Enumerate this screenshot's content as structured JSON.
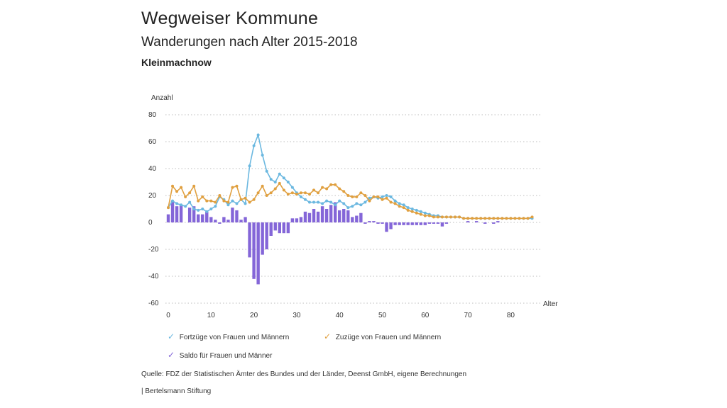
{
  "header": {
    "title": "Wegweiser Kommune",
    "subtitle": "Wanderungen nach Alter 2015-2018",
    "region": "Kleinmachnow"
  },
  "chart_data": {
    "type": "line+bar",
    "ylabel": "Anzahl",
    "xlabel": "Alter",
    "ylim": [
      -60,
      80
    ],
    "xlim": [
      0,
      86
    ],
    "yticks": [
      "80",
      "60",
      "40",
      "20",
      "0",
      "-20",
      "-40",
      "-60"
    ],
    "xticks": [
      "0",
      "10",
      "20",
      "30",
      "40",
      "50",
      "60",
      "70",
      "80"
    ],
    "x": [
      0,
      1,
      2,
      3,
      4,
      5,
      6,
      7,
      8,
      9,
      10,
      11,
      12,
      13,
      14,
      15,
      16,
      17,
      18,
      19,
      20,
      21,
      22,
      23,
      24,
      25,
      26,
      27,
      28,
      29,
      30,
      31,
      32,
      33,
      34,
      35,
      36,
      37,
      38,
      39,
      40,
      41,
      42,
      43,
      44,
      45,
      46,
      47,
      48,
      49,
      50,
      51,
      52,
      53,
      54,
      55,
      56,
      57,
      58,
      59,
      60,
      61,
      62,
      63,
      64,
      65,
      66,
      67,
      68,
      69,
      70,
      71,
      72,
      73,
      74,
      75,
      76,
      77,
      78,
      79,
      80,
      81,
      82,
      83,
      84,
      85
    ],
    "series": [
      {
        "name": "Fortzüge von Frauen und Männern",
        "color": "#6bb8e0",
        "type": "line",
        "values": [
          11,
          16,
          14,
          13,
          12,
          15,
          10,
          9,
          10,
          8,
          10,
          12,
          19,
          17,
          13,
          16,
          14,
          17,
          14,
          42,
          57,
          65,
          50,
          38,
          32,
          30,
          36,
          33,
          30,
          26,
          22,
          19,
          17,
          15,
          15,
          15,
          14,
          16,
          15,
          13,
          16,
          14,
          11,
          12,
          14,
          13,
          15,
          18,
          19,
          18,
          19,
          20,
          19,
          16,
          14,
          13,
          11,
          10,
          9,
          8,
          7,
          6,
          5,
          5,
          4,
          4,
          4,
          4,
          4,
          3,
          3,
          3,
          3,
          3,
          3,
          3,
          3,
          3,
          3,
          3,
          3,
          3,
          3,
          3,
          3,
          3
        ]
      },
      {
        "name": "Zuzüge von Frauen und Männern",
        "color": "#e0a040",
        "type": "line",
        "values": [
          11,
          27,
          23,
          26,
          19,
          22,
          27,
          16,
          19,
          16,
          16,
          15,
          20,
          16,
          15,
          26,
          27,
          17,
          18,
          15,
          17,
          22,
          27,
          20,
          22,
          25,
          29,
          24,
          21,
          22,
          21,
          22,
          22,
          21,
          24,
          22,
          26,
          25,
          28,
          28,
          25,
          23,
          20,
          19,
          19,
          22,
          20,
          16,
          19,
          19,
          17,
          18,
          15,
          14,
          12,
          11,
          9,
          8,
          7,
          6,
          5,
          5,
          4,
          4,
          4,
          4,
          4,
          4,
          4,
          3,
          3,
          3,
          3,
          3,
          3,
          3,
          3,
          3,
          3,
          3,
          3,
          3,
          3,
          3,
          3,
          4
        ]
      },
      {
        "name": "Saldo für Frauen und Männer",
        "color": "#8466d8",
        "type": "bar",
        "values": [
          6,
          16,
          12,
          13,
          0,
          11,
          12,
          6,
          6,
          8,
          4,
          2,
          -1,
          4,
          2,
          11,
          9,
          2,
          4,
          -26,
          -42,
          -46,
          -24,
          -20,
          -10,
          -6,
          -8,
          -8,
          -8,
          3,
          3,
          4,
          8,
          7,
          10,
          8,
          12,
          10,
          13,
          15,
          9,
          10,
          9,
          4,
          5,
          7,
          -1,
          1,
          1,
          -1,
          -1,
          -7,
          -5,
          -2,
          -2,
          -2,
          -2,
          -2,
          -2,
          -2,
          -2,
          -1,
          -1,
          -1,
          -3,
          -1,
          0,
          0,
          0,
          0,
          1,
          0,
          1,
          0,
          -1,
          0,
          -1,
          1,
          0,
          0,
          0,
          0,
          0,
          0,
          0,
          0
        ]
      }
    ]
  },
  "legend": {
    "items": [
      {
        "label": "Fortzüge von Frauen und Männern",
        "mark": "✓",
        "color": "#6bb8e0"
      },
      {
        "label": "Zuzüge von Frauen und Männern",
        "mark": "✓",
        "color": "#e0a040"
      },
      {
        "label": "Saldo für Frauen und Männer",
        "mark": "✓",
        "color": "#8466d8"
      }
    ]
  },
  "footer": {
    "source": "Quelle: FDZ der Statistischen Ämter des Bundes und der Länder, Deenst GmbH, eigene Berechnungen",
    "publisher": "| Bertelsmann Stiftung"
  }
}
